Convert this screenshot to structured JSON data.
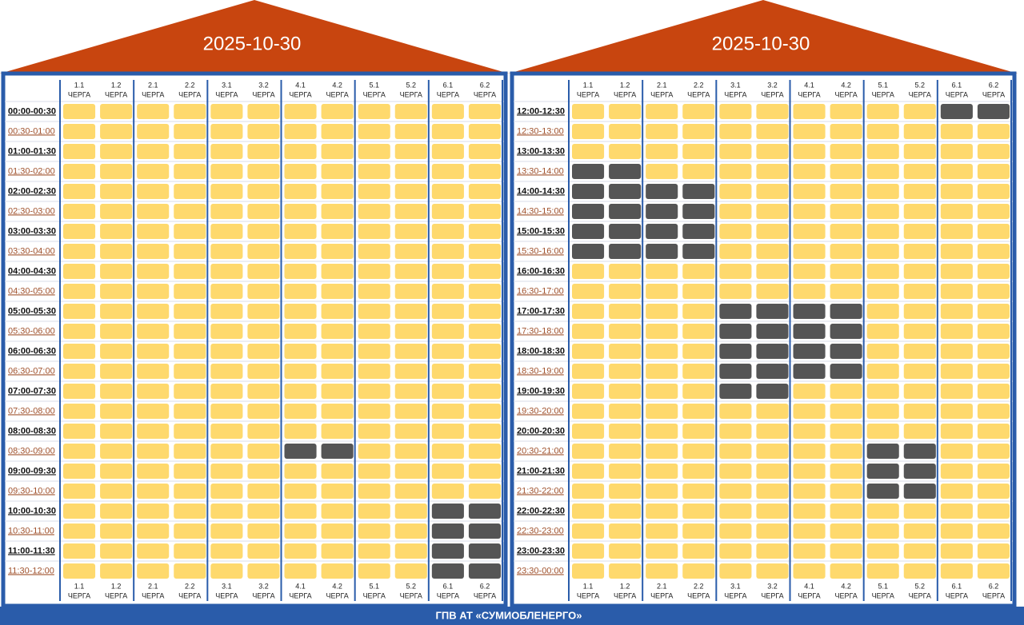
{
  "panels": [
    {
      "title": "2025-10-30",
      "times": [
        "00:00-00:30",
        "00:30-01:00",
        "01:00-01:30",
        "01:30-02:00",
        "02:00-02:30",
        "02:30-03:00",
        "03:00-03:30",
        "03:30-04:00",
        "04:00-04:30",
        "04:30-05:00",
        "05:00-05:30",
        "05:30-06:00",
        "06:00-06:30",
        "06:30-07:00",
        "07:00-07:30",
        "07:30-08:00",
        "08:00-08:30",
        "08:30-09:00",
        "09:00-09:30",
        "09:30-10:00",
        "10:00-10:30",
        "10:30-11:00",
        "11:00-11:30",
        "11:30-12:00"
      ],
      "grid": [
        [
          0,
          0,
          0,
          0,
          0,
          0,
          0,
          0,
          0,
          0,
          0,
          0
        ],
        [
          0,
          0,
          0,
          0,
          0,
          0,
          0,
          0,
          0,
          0,
          0,
          0
        ],
        [
          0,
          0,
          0,
          0,
          0,
          0,
          0,
          0,
          0,
          0,
          0,
          0
        ],
        [
          0,
          0,
          0,
          0,
          0,
          0,
          0,
          0,
          0,
          0,
          0,
          0
        ],
        [
          0,
          0,
          0,
          0,
          0,
          0,
          0,
          0,
          0,
          0,
          0,
          0
        ],
        [
          0,
          0,
          0,
          0,
          0,
          0,
          0,
          0,
          0,
          0,
          0,
          0
        ],
        [
          0,
          0,
          0,
          0,
          0,
          0,
          0,
          0,
          0,
          0,
          0,
          0
        ],
        [
          0,
          0,
          0,
          0,
          0,
          0,
          0,
          0,
          0,
          0,
          0,
          0
        ],
        [
          0,
          0,
          0,
          0,
          0,
          0,
          0,
          0,
          0,
          0,
          0,
          0
        ],
        [
          0,
          0,
          0,
          0,
          0,
          0,
          0,
          0,
          0,
          0,
          0,
          0
        ],
        [
          0,
          0,
          0,
          0,
          0,
          0,
          0,
          0,
          0,
          0,
          0,
          0
        ],
        [
          0,
          0,
          0,
          0,
          0,
          0,
          0,
          0,
          0,
          0,
          0,
          0
        ],
        [
          0,
          0,
          0,
          0,
          0,
          0,
          0,
          0,
          0,
          0,
          0,
          0
        ],
        [
          0,
          0,
          0,
          0,
          0,
          0,
          0,
          0,
          0,
          0,
          0,
          0
        ],
        [
          0,
          0,
          0,
          0,
          0,
          0,
          0,
          0,
          0,
          0,
          0,
          0
        ],
        [
          0,
          0,
          0,
          0,
          0,
          0,
          0,
          0,
          0,
          0,
          0,
          0
        ],
        [
          0,
          0,
          0,
          0,
          0,
          0,
          0,
          0,
          0,
          0,
          0,
          0
        ],
        [
          0,
          0,
          0,
          0,
          0,
          0,
          1,
          1,
          0,
          0,
          0,
          0
        ],
        [
          0,
          0,
          0,
          0,
          0,
          0,
          0,
          0,
          0,
          0,
          0,
          0
        ],
        [
          0,
          0,
          0,
          0,
          0,
          0,
          0,
          0,
          0,
          0,
          0,
          0
        ],
        [
          0,
          0,
          0,
          0,
          0,
          0,
          0,
          0,
          0,
          0,
          1,
          1
        ],
        [
          0,
          0,
          0,
          0,
          0,
          0,
          0,
          0,
          0,
          0,
          1,
          1
        ],
        [
          0,
          0,
          0,
          0,
          0,
          0,
          0,
          0,
          0,
          0,
          1,
          1
        ],
        [
          0,
          0,
          0,
          0,
          0,
          0,
          0,
          0,
          0,
          0,
          1,
          1
        ]
      ]
    },
    {
      "title": "2025-10-30",
      "times": [
        "12:00-12:30",
        "12:30-13:00",
        "13:00-13:30",
        "13:30-14:00",
        "14:00-14:30",
        "14:30-15:00",
        "15:00-15:30",
        "15:30-16:00",
        "16:00-16:30",
        "16:30-17:00",
        "17:00-17:30",
        "17:30-18:00",
        "18:00-18:30",
        "18:30-19:00",
        "19:00-19:30",
        "19:30-20:00",
        "20:00-20:30",
        "20:30-21:00",
        "21:00-21:30",
        "21:30-22:00",
        "22:00-22:30",
        "22:30-23:00",
        "23:00-23:30",
        "23:30-00:00"
      ],
      "grid": [
        [
          0,
          0,
          0,
          0,
          0,
          0,
          0,
          0,
          0,
          0,
          1,
          1
        ],
        [
          0,
          0,
          0,
          0,
          0,
          0,
          0,
          0,
          0,
          0,
          0,
          0
        ],
        [
          0,
          0,
          0,
          0,
          0,
          0,
          0,
          0,
          0,
          0,
          0,
          0
        ],
        [
          1,
          1,
          0,
          0,
          0,
          0,
          0,
          0,
          0,
          0,
          0,
          0
        ],
        [
          1,
          1,
          1,
          1,
          0,
          0,
          0,
          0,
          0,
          0,
          0,
          0
        ],
        [
          1,
          1,
          1,
          1,
          0,
          0,
          0,
          0,
          0,
          0,
          0,
          0
        ],
        [
          1,
          1,
          1,
          1,
          0,
          0,
          0,
          0,
          0,
          0,
          0,
          0
        ],
        [
          1,
          1,
          1,
          1,
          0,
          0,
          0,
          0,
          0,
          0,
          0,
          0
        ],
        [
          0,
          0,
          0,
          0,
          0,
          0,
          0,
          0,
          0,
          0,
          0,
          0
        ],
        [
          0,
          0,
          0,
          0,
          0,
          0,
          0,
          0,
          0,
          0,
          0,
          0
        ],
        [
          0,
          0,
          0,
          0,
          1,
          1,
          1,
          1,
          0,
          0,
          0,
          0
        ],
        [
          0,
          0,
          0,
          0,
          1,
          1,
          1,
          1,
          0,
          0,
          0,
          0
        ],
        [
          0,
          0,
          0,
          0,
          1,
          1,
          1,
          1,
          0,
          0,
          0,
          0
        ],
        [
          0,
          0,
          0,
          0,
          1,
          1,
          1,
          1,
          0,
          0,
          0,
          0
        ],
        [
          0,
          0,
          0,
          0,
          1,
          1,
          0,
          0,
          0,
          0,
          0,
          0
        ],
        [
          0,
          0,
          0,
          0,
          0,
          0,
          0,
          0,
          0,
          0,
          0,
          0
        ],
        [
          0,
          0,
          0,
          0,
          0,
          0,
          0,
          0,
          0,
          0,
          0,
          0
        ],
        [
          0,
          0,
          0,
          0,
          0,
          0,
          0,
          0,
          1,
          1,
          0,
          0
        ],
        [
          0,
          0,
          0,
          0,
          0,
          0,
          0,
          0,
          1,
          1,
          0,
          0
        ],
        [
          0,
          0,
          0,
          0,
          0,
          0,
          0,
          0,
          1,
          1,
          0,
          0
        ],
        [
          0,
          0,
          0,
          0,
          0,
          0,
          0,
          0,
          0,
          0,
          0,
          0
        ],
        [
          0,
          0,
          0,
          0,
          0,
          0,
          0,
          0,
          0,
          0,
          0,
          0
        ],
        [
          0,
          0,
          0,
          0,
          0,
          0,
          0,
          0,
          0,
          0,
          0,
          0
        ],
        [
          0,
          0,
          0,
          0,
          0,
          0,
          0,
          0,
          0,
          0,
          0,
          0
        ]
      ]
    }
  ],
  "queues": [
    "1.1",
    "1.2",
    "2.1",
    "2.2",
    "3.1",
    "3.2",
    "4.1",
    "4.2",
    "5.1",
    "5.2",
    "6.1",
    "6.2"
  ],
  "queue_word": "ЧЕРГА",
  "footer": "ГПВ АТ «СУМИОБЛЕНЕРГО»"
}
